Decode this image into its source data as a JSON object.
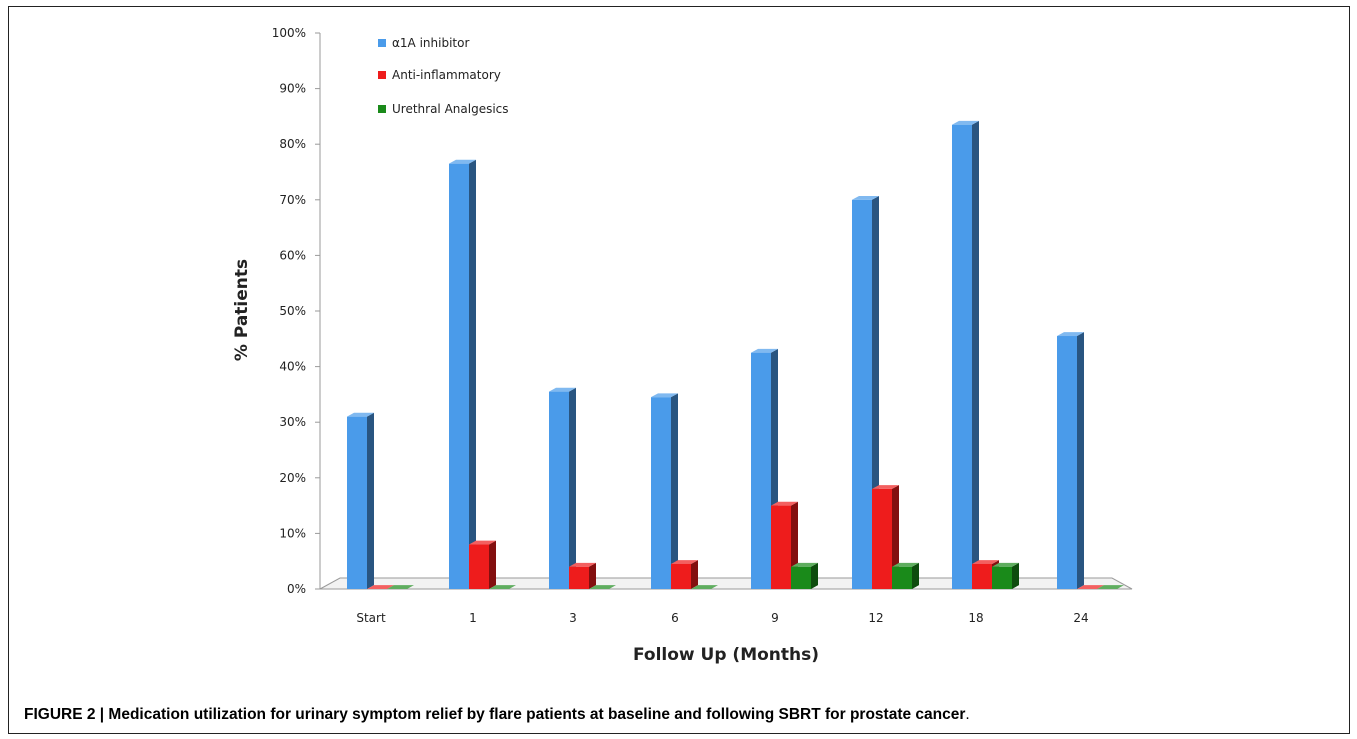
{
  "chart_data": {
    "type": "bar",
    "categories": [
      "Start",
      "1",
      "3",
      "6",
      "9",
      "12",
      "18",
      "24"
    ],
    "series": [
      {
        "name": "α1A inhibitor",
        "values": [
          31,
          76.5,
          35.5,
          34.5,
          42.5,
          70,
          83.5,
          45.5
        ],
        "color": "#4a9bea"
      },
      {
        "name": "Anti-inflammatory",
        "values": [
          0,
          8,
          4,
          4.5,
          15,
          18,
          4.5,
          0
        ],
        "color": "#ee1c1c"
      },
      {
        "name": "Urethral Analgesics",
        "values": [
          0,
          0,
          0,
          0,
          4,
          4,
          4,
          0
        ],
        "color": "#1a8a1a"
      }
    ],
    "xlabel": "Follow Up (Months)",
    "ylabel": "% Patients",
    "ylim": [
      0,
      100
    ],
    "yticks": [
      "0%",
      "10%",
      "20%",
      "30%",
      "40%",
      "50%",
      "60%",
      "70%",
      "80%",
      "90%",
      "100%"
    ],
    "legend": "top-left",
    "style": "3d-column"
  },
  "caption": {
    "bold": "FIGURE 2 | Medication utilization for urinary symptom relief by flare patients at baseline and following SBRT for prostate cancer",
    "tail": "."
  }
}
